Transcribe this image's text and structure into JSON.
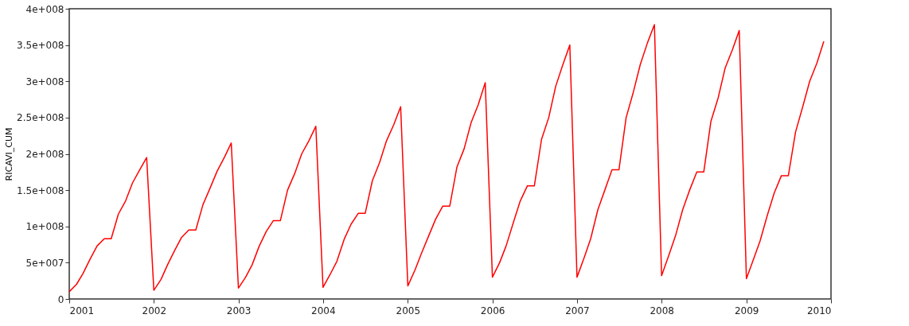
{
  "chart_data": {
    "type": "line",
    "ylabel": "RICAVI_CUM",
    "x": [
      "2001-01",
      "2001-02",
      "2001-03",
      "2001-04",
      "2001-05",
      "2001-06",
      "2001-07",
      "2001-08",
      "2001-09",
      "2001-10",
      "2001-11",
      "2001-12",
      "2002-01",
      "2002-02",
      "2002-03",
      "2002-04",
      "2002-05",
      "2002-06",
      "2002-07",
      "2002-08",
      "2002-09",
      "2002-10",
      "2002-11",
      "2002-12",
      "2003-01",
      "2003-02",
      "2003-03",
      "2003-04",
      "2003-05",
      "2003-06",
      "2003-07",
      "2003-08",
      "2003-09",
      "2003-10",
      "2003-11",
      "2003-12",
      "2004-01",
      "2004-02",
      "2004-03",
      "2004-04",
      "2004-05",
      "2004-06",
      "2004-07",
      "2004-08",
      "2004-09",
      "2004-10",
      "2004-11",
      "2004-12",
      "2005-01",
      "2005-02",
      "2005-03",
      "2005-04",
      "2005-05",
      "2005-06",
      "2005-07",
      "2005-08",
      "2005-09",
      "2005-10",
      "2005-11",
      "2005-12",
      "2006-01",
      "2006-02",
      "2006-03",
      "2006-04",
      "2006-05",
      "2006-06",
      "2006-07",
      "2006-08",
      "2006-09",
      "2006-10",
      "2006-11",
      "2006-12",
      "2007-01",
      "2007-02",
      "2007-03",
      "2007-04",
      "2007-05",
      "2007-06",
      "2007-07",
      "2007-08",
      "2007-09",
      "2007-10",
      "2007-11",
      "2007-12",
      "2008-01",
      "2008-02",
      "2008-03",
      "2008-04",
      "2008-05",
      "2008-06",
      "2008-07",
      "2008-08",
      "2008-09",
      "2008-10",
      "2008-11",
      "2008-12",
      "2009-01",
      "2009-02",
      "2009-03",
      "2009-04",
      "2009-05",
      "2009-06",
      "2009-07",
      "2009-08",
      "2009-09",
      "2009-10",
      "2009-11",
      "2009-12"
    ],
    "series": [
      {
        "color": "#ff0000",
        "values": [
          10000000,
          20000000,
          35000000,
          55000000,
          73000000,
          83000000,
          83000000,
          117000000,
          135000000,
          160000000,
          178000000,
          195000000,
          12000000,
          27000000,
          47000000,
          67000000,
          85000000,
          95000000,
          95000000,
          130000000,
          153000000,
          176000000,
          195000000,
          215000000,
          15000000,
          30000000,
          47000000,
          73000000,
          93000000,
          108000000,
          108000000,
          150000000,
          173000000,
          200000000,
          218000000,
          238000000,
          16000000,
          34000000,
          52000000,
          82000000,
          103000000,
          118000000,
          118000000,
          163000000,
          188000000,
          218000000,
          240000000,
          265000000,
          18000000,
          40000000,
          63000000,
          87000000,
          110000000,
          128000000,
          128000000,
          182000000,
          207000000,
          243000000,
          268000000,
          298000000,
          30000000,
          50000000,
          73000000,
          105000000,
          135000000,
          156000000,
          156000000,
          220000000,
          250000000,
          293000000,
          323000000,
          350000000,
          30000000,
          57000000,
          83000000,
          123000000,
          150000000,
          178000000,
          178000000,
          250000000,
          285000000,
          323000000,
          353000000,
          378000000,
          32000000,
          60000000,
          87000000,
          123000000,
          150000000,
          175000000,
          175000000,
          245000000,
          277000000,
          318000000,
          343000000,
          370000000,
          28000000,
          55000000,
          80000000,
          115000000,
          146000000,
          170000000,
          170000000,
          230000000,
          265000000,
          300000000,
          325000000,
          355000000
        ]
      }
    ],
    "xlim": [
      "2001-01",
      "2010-01"
    ],
    "xticks": [
      {
        "value": "2001",
        "label": "2001"
      },
      {
        "value": "2002",
        "label": "2002"
      },
      {
        "value": "2003",
        "label": "2003"
      },
      {
        "value": "2004",
        "label": "2004"
      },
      {
        "value": "2005",
        "label": "2005"
      },
      {
        "value": "2006",
        "label": "2006"
      },
      {
        "value": "2007",
        "label": "2007"
      },
      {
        "value": "2008",
        "label": "2008"
      },
      {
        "value": "2009",
        "label": "2009"
      },
      {
        "value": "2010",
        "label": "2010"
      }
    ],
    "ylim": [
      0,
      400000000
    ],
    "yticks": [
      0,
      {
        "value": 50000000,
        "label": "5e+007"
      },
      {
        "value": 100000000,
        "label": "1e+008"
      },
      {
        "value": 150000000,
        "label": "1.5e+008"
      },
      {
        "value": 200000000,
        "label": "2e+008"
      },
      {
        "value": 250000000,
        "label": "2.5e+008"
      },
      {
        "value": 300000000,
        "label": "3e+008"
      },
      {
        "value": 350000000,
        "label": "3.5e+008"
      },
      {
        "value": 400000000,
        "label": "4e+008"
      }
    ],
    "grid": false,
    "marker": "none",
    "line_style": "solid"
  }
}
